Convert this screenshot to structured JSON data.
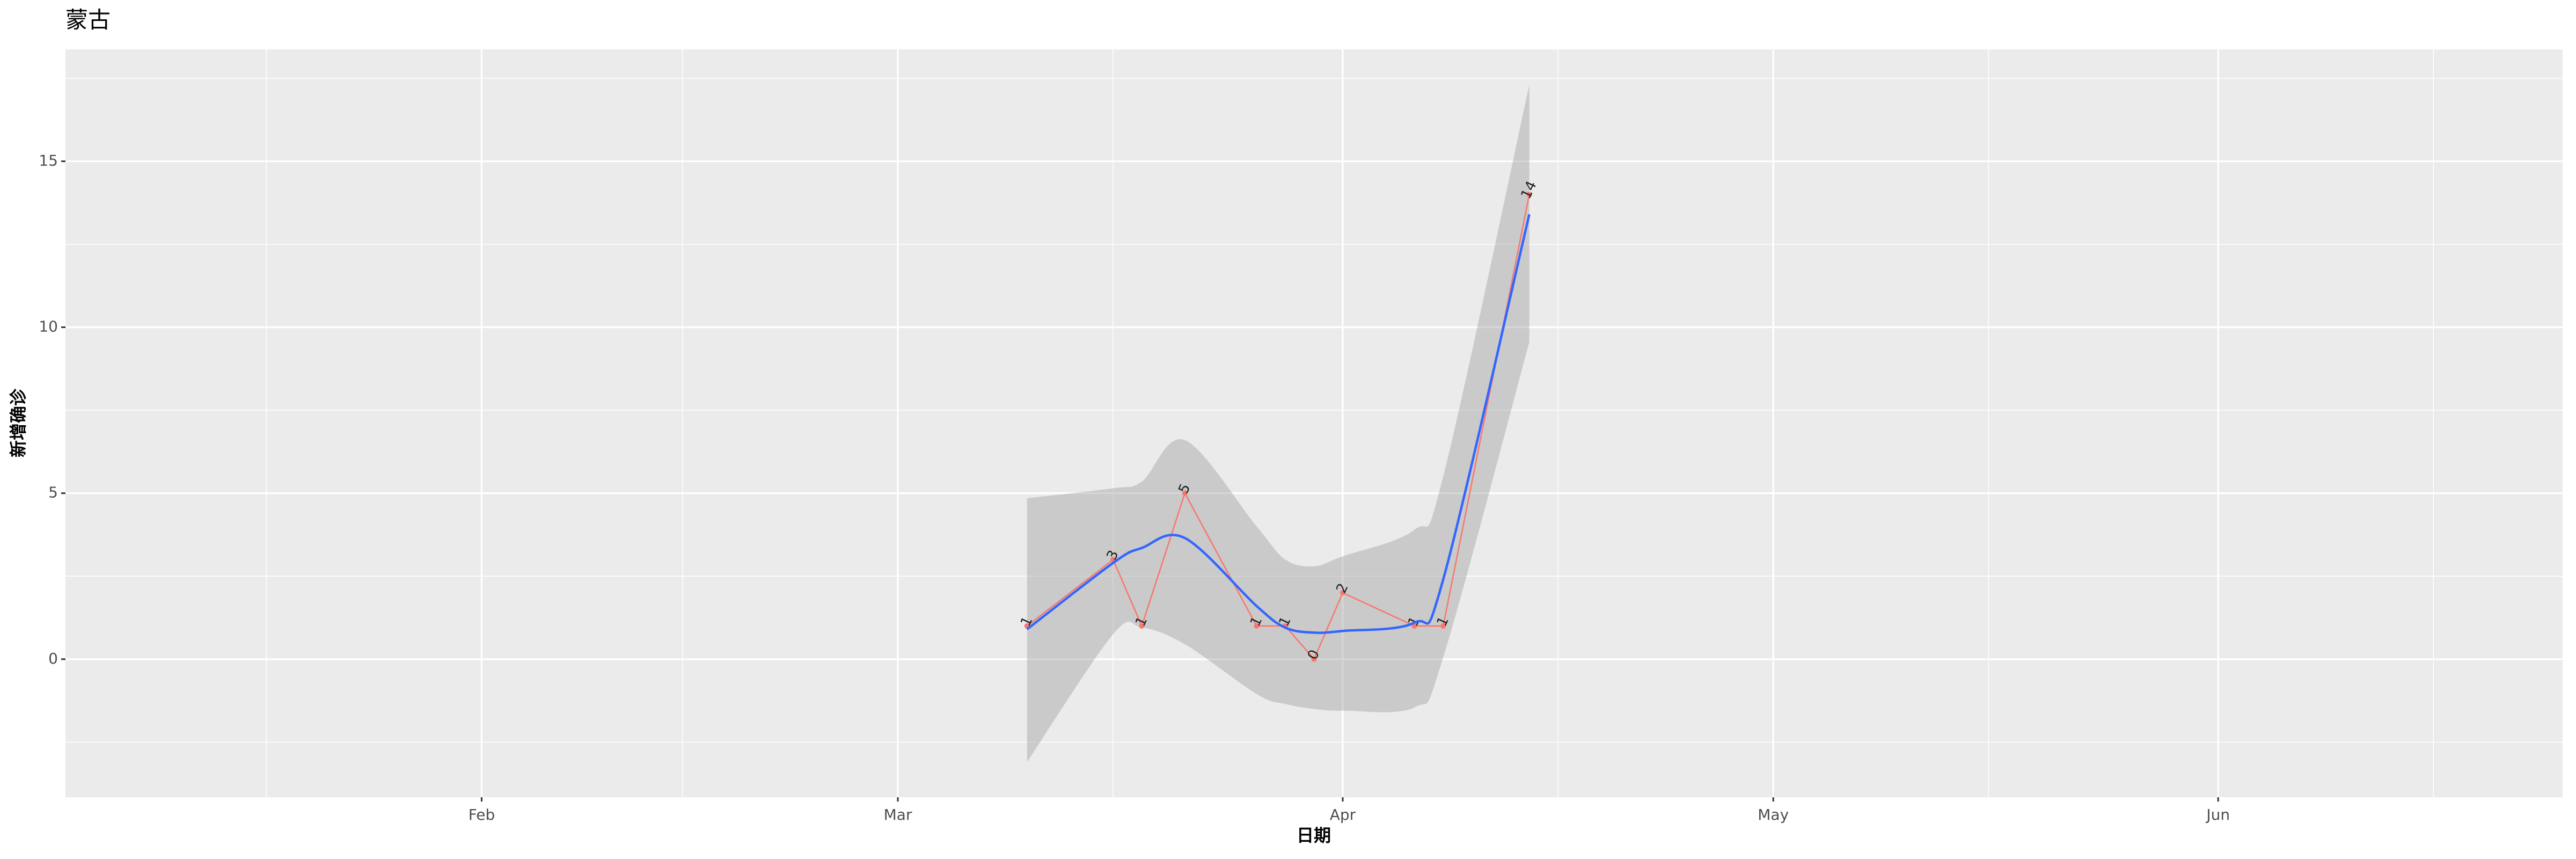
{
  "chart_data": {
    "type": "line",
    "title": "蒙古",
    "x_label": "日期",
    "y_label": "新增确诊",
    "x": [
      "03-10",
      "03-16",
      "03-18",
      "03-21",
      "03-26",
      "03-28",
      "03-30",
      "04-01",
      "04-06",
      "04-08",
      "04-14"
    ],
    "xlim": [
      "01-03",
      "06-25"
    ],
    "xticks": [
      {
        "value": "02-01",
        "label": "Feb"
      },
      {
        "value": "03-01",
        "label": "Mar"
      },
      {
        "value": "04-01",
        "label": "Apr"
      },
      {
        "value": "05-01",
        "label": "May"
      },
      {
        "value": "06-01",
        "label": "Jun"
      }
    ],
    "xminor": [
      "01-17",
      "02-15",
      "03-16",
      "04-16",
      "05-16",
      "06-16"
    ],
    "ylim": [
      -4.16,
      18.37
    ],
    "yticks": [
      0,
      5,
      10,
      15
    ],
    "yminor": [
      -2.5,
      2.5,
      7.5,
      12.5,
      17.5
    ],
    "grid": true,
    "series": [
      {
        "color": "#F8766D",
        "values": [
          1,
          3,
          1,
          5,
          1,
          1,
          0,
          2,
          1,
          1,
          14
        ],
        "data_labels": true
      },
      {
        "color": "#3366FF",
        "values": [
          0.9,
          2.9,
          3.35,
          3.65,
          1.6,
          0.95,
          0.8,
          0.85,
          1.1,
          2.4,
          13.4
        ],
        "lower": [
          -3.1,
          0.75,
          0.95,
          0.45,
          -1.05,
          -1.35,
          -1.5,
          -1.55,
          -1.45,
          0.05,
          9.55
        ],
        "upper": [
          4.85,
          5.15,
          5.35,
          6.6,
          4.0,
          3.0,
          2.8,
          3.1,
          3.9,
          5.5,
          17.3
        ],
        "band_color": "#999999"
      }
    ]
  }
}
